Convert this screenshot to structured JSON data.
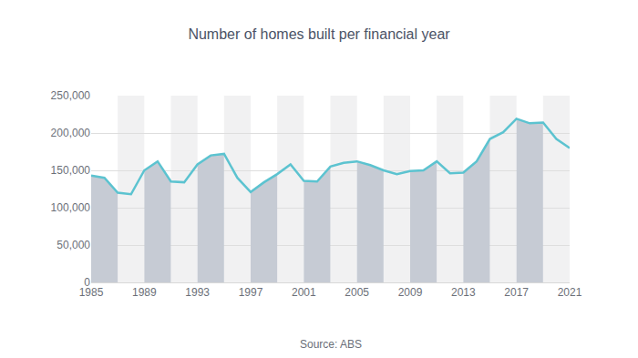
{
  "chart_data": {
    "type": "line",
    "title": "Number of homes built per financial year",
    "source": "Source: ABS",
    "x": [
      1985,
      1986,
      1987,
      1988,
      1989,
      1990,
      1991,
      1992,
      1993,
      1994,
      1995,
      1996,
      1997,
      1998,
      1999,
      2000,
      2001,
      2002,
      2003,
      2004,
      2005,
      2006,
      2007,
      2008,
      2009,
      2010,
      2011,
      2012,
      2013,
      2014,
      2015,
      2016,
      2017,
      2018,
      2019,
      2020,
      2021
    ],
    "values": [
      143000,
      140000,
      120000,
      118000,
      150000,
      162000,
      135000,
      134000,
      158000,
      170000,
      172000,
      140000,
      121000,
      134000,
      145000,
      158000,
      136000,
      135000,
      155000,
      160000,
      162000,
      157000,
      150000,
      145000,
      149000,
      150000,
      162000,
      146000,
      147000,
      162000,
      192000,
      201000,
      219000,
      213000,
      214000,
      192000,
      180000
    ],
    "color": "#5cc3d0",
    "xlim": [
      1985,
      2021
    ],
    "xticks": [
      1985,
      1989,
      1993,
      1997,
      2001,
      2005,
      2009,
      2013,
      2017,
      2021
    ],
    "ylim": [
      0,
      250000
    ],
    "yticks": [
      0,
      {
        "value": 50000,
        "label": "50,000"
      },
      {
        "value": 100000,
        "label": "100,000"
      },
      {
        "value": 150000,
        "label": "150,000"
      },
      {
        "value": 200000,
        "label": "200,000"
      },
      {
        "value": 250000,
        "label": "250,000"
      }
    ],
    "grid": true
  }
}
